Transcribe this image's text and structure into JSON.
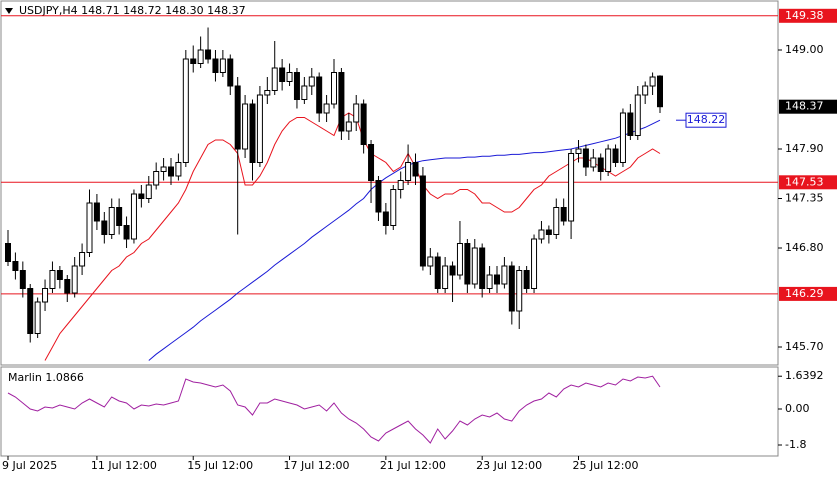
{
  "chart_data": {
    "type": "candlestick",
    "title": "USDJPY,H4  148.71 148.72 148.30 148.37",
    "categories": [
      "9 Jul 2025",
      null,
      null,
      null,
      null,
      null,
      null,
      null,
      null,
      null,
      null,
      null,
      "11 Jul 12:00",
      null,
      null,
      null,
      null,
      null,
      null,
      null,
      null,
      null,
      null,
      null,
      null,
      "15 Jul 12:00",
      null,
      null,
      null,
      null,
      null,
      null,
      null,
      null,
      null,
      null,
      null,
      null,
      "17 Jul 12:00",
      null,
      null,
      null,
      null,
      null,
      null,
      null,
      null,
      null,
      null,
      null,
      null,
      "21 Jul 12:00",
      null,
      null,
      null,
      null,
      null,
      null,
      null,
      null,
      null,
      null,
      null,
      null,
      "23 Jul 12:00",
      null,
      null,
      null,
      null,
      null,
      null,
      null,
      null,
      null,
      null,
      null,
      null,
      "25 Jul 12:00",
      null,
      null,
      null,
      null,
      null,
      null,
      null,
      null,
      null,
      null,
      null
    ],
    "open": [
      146.85,
      146.65,
      146.55,
      146.35,
      145.85,
      146.2,
      146.35,
      146.55,
      146.45,
      146.3,
      146.6,
      146.75,
      147.3,
      147.1,
      146.95,
      147.25,
      147.05,
      146.9,
      147.4,
      147.35,
      147.5,
      147.65,
      147.7,
      147.6,
      147.75,
      148.9,
      148.85,
      149.0,
      148.9,
      148.75,
      148.9,
      148.6,
      147.9,
      148.4,
      147.75,
      148.5,
      148.55,
      148.8,
      148.65,
      148.75,
      148.45,
      148.6,
      148.7,
      148.3,
      148.4,
      148.75,
      148.1,
      148.2,
      148.4,
      147.95,
      147.55,
      147.2,
      147.05,
      147.45,
      147.55,
      147.75,
      147.6,
      146.6,
      146.7,
      146.35,
      146.6,
      146.5,
      146.85,
      146.4,
      146.8,
      146.35,
      146.5,
      146.4,
      146.6,
      146.1,
      146.55,
      146.35,
      146.9,
      147.0,
      146.95,
      147.25,
      147.1,
      147.85,
      147.9,
      147.7,
      147.8,
      147.65,
      147.9,
      147.75,
      148.3,
      148.05,
      148.5,
      148.6,
      148.71
    ],
    "high": [
      147.0,
      146.75,
      146.65,
      146.4,
      146.25,
      146.45,
      146.65,
      146.6,
      146.5,
      146.7,
      146.85,
      147.45,
      147.4,
      147.2,
      147.35,
      147.35,
      147.15,
      147.45,
      147.5,
      147.6,
      147.75,
      147.8,
      147.8,
      147.85,
      149.0,
      149.05,
      149.15,
      149.25,
      149.0,
      149.0,
      148.95,
      148.7,
      148.5,
      148.45,
      148.6,
      148.7,
      149.1,
      148.9,
      148.85,
      148.8,
      148.7,
      148.8,
      148.75,
      148.5,
      148.9,
      148.8,
      148.3,
      148.5,
      148.45,
      148.0,
      147.6,
      147.3,
      147.5,
      147.65,
      147.95,
      147.85,
      147.7,
      146.8,
      146.75,
      146.7,
      146.65,
      147.1,
      146.9,
      146.9,
      146.85,
      146.6,
      146.6,
      146.7,
      146.65,
      146.6,
      146.6,
      146.95,
      147.1,
      147.05,
      147.35,
      147.35,
      147.9,
      148.0,
      147.95,
      147.9,
      147.85,
      147.95,
      147.95,
      148.35,
      148.4,
      148.6,
      148.65,
      148.75,
      148.72
    ],
    "low": [
      146.6,
      146.45,
      146.25,
      145.75,
      145.8,
      146.1,
      146.3,
      146.35,
      146.2,
      146.25,
      146.5,
      146.7,
      147.0,
      146.85,
      146.9,
      146.95,
      146.8,
      146.85,
      147.25,
      147.3,
      147.45,
      147.55,
      147.5,
      147.55,
      147.7,
      148.75,
      148.8,
      148.85,
      148.65,
      148.7,
      148.5,
      146.95,
      147.8,
      147.55,
      147.7,
      148.4,
      148.5,
      148.55,
      148.6,
      148.35,
      148.4,
      148.5,
      148.2,
      148.2,
      148.35,
      148.0,
      148.0,
      148.1,
      147.85,
      147.3,
      147.1,
      146.95,
      147.0,
      147.35,
      147.5,
      147.5,
      146.55,
      146.5,
      146.3,
      146.3,
      146.2,
      146.45,
      146.3,
      146.35,
      146.25,
      146.3,
      146.3,
      146.35,
      145.95,
      145.9,
      146.3,
      146.3,
      146.85,
      146.85,
      146.9,
      147.05,
      146.9,
      147.75,
      147.6,
      147.65,
      147.55,
      147.6,
      147.7,
      147.7,
      148.0,
      148.0,
      148.4,
      148.5,
      148.3
    ],
    "close": [
      146.65,
      146.55,
      146.35,
      145.85,
      146.2,
      146.35,
      146.55,
      146.45,
      146.3,
      146.6,
      146.75,
      147.3,
      147.1,
      146.95,
      147.25,
      147.05,
      146.9,
      147.4,
      147.35,
      147.5,
      147.65,
      147.7,
      147.6,
      147.75,
      148.9,
      148.85,
      149.0,
      148.9,
      148.75,
      148.9,
      148.6,
      147.9,
      148.4,
      147.75,
      148.5,
      148.55,
      148.8,
      148.65,
      148.75,
      148.45,
      148.6,
      148.7,
      148.3,
      148.4,
      148.75,
      148.1,
      148.2,
      148.4,
      147.95,
      147.55,
      147.2,
      147.05,
      147.45,
      147.55,
      147.75,
      147.6,
      146.6,
      146.7,
      146.35,
      146.6,
      146.5,
      146.85,
      146.4,
      146.8,
      146.35,
      146.5,
      146.4,
      146.6,
      146.1,
      146.55,
      146.35,
      146.9,
      147.0,
      146.95,
      147.25,
      147.1,
      147.85,
      147.9,
      147.7,
      147.8,
      147.65,
      147.9,
      147.75,
      148.3,
      148.05,
      148.5,
      148.6,
      148.7,
      148.37
    ],
    "series": [
      {
        "color": "#e8141e",
        "values": [
          null,
          null,
          null,
          null,
          null,
          145.55,
          145.7,
          145.85,
          145.95,
          146.05,
          146.15,
          146.25,
          146.35,
          146.45,
          146.55,
          146.6,
          146.7,
          146.75,
          146.85,
          146.9,
          147.0,
          147.1,
          147.2,
          147.3,
          147.45,
          147.65,
          147.8,
          147.95,
          148.0,
          148.0,
          147.95,
          147.85,
          147.5,
          147.5,
          147.6,
          147.75,
          147.95,
          148.1,
          148.2,
          148.25,
          148.25,
          148.2,
          148.15,
          148.1,
          148.05,
          148.25,
          148.3,
          148.25,
          148.0,
          147.85,
          147.8,
          147.75,
          147.65,
          147.7,
          147.85,
          147.7,
          147.5,
          147.4,
          147.35,
          147.4,
          147.4,
          147.45,
          147.45,
          147.4,
          147.3,
          147.3,
          147.25,
          147.2,
          147.2,
          147.25,
          147.35,
          147.45,
          147.5,
          147.6,
          147.65,
          147.7,
          147.75,
          147.8,
          147.8,
          147.75,
          147.7,
          147.65,
          147.6,
          147.65,
          147.7,
          147.8,
          147.85,
          147.9,
          147.85
        ]
      },
      {
        "color": "#1a1ad6",
        "values": [
          null,
          null,
          null,
          null,
          null,
          null,
          null,
          null,
          null,
          null,
          null,
          null,
          null,
          null,
          null,
          null,
          null,
          null,
          null,
          145.55,
          145.62,
          145.68,
          145.74,
          145.8,
          145.86,
          145.92,
          145.99,
          146.05,
          146.11,
          146.17,
          146.23,
          146.3,
          146.36,
          146.42,
          146.48,
          146.54,
          146.61,
          146.67,
          146.73,
          146.79,
          146.85,
          146.92,
          146.98,
          147.04,
          147.1,
          147.16,
          147.22,
          147.29,
          147.35,
          147.45,
          147.52,
          147.58,
          147.63,
          147.68,
          147.72,
          147.75,
          147.77,
          147.78,
          147.79,
          147.8,
          147.8,
          147.8,
          147.81,
          147.81,
          147.82,
          147.82,
          147.83,
          147.83,
          147.84,
          147.84,
          147.85,
          147.86,
          147.86,
          147.87,
          147.88,
          147.89,
          147.9,
          147.92,
          147.94,
          147.96,
          147.98,
          148.0,
          148.02,
          148.05,
          148.08,
          148.11,
          148.14,
          148.18,
          148.22
        ]
      }
    ],
    "levels": [
      149.38,
      147.53,
      146.29
    ],
    "level_color": "#e8141e",
    "ylim": [
      145.5,
      149.5
    ],
    "yticks": [
      {
        "value": 149.0,
        "label": "149.00"
      },
      {
        "value": 147.9,
        "label": "147.90"
      },
      {
        "value": 147.35,
        "label": "147.35"
      },
      {
        "value": 146.8,
        "label": "146.80"
      },
      {
        "value": 145.7,
        "label": "145.70"
      }
    ],
    "indicator": {
      "title": "Marlin 1.0866",
      "color": "#a020a0",
      "values": [
        0.8,
        0.6,
        0.3,
        0.0,
        -0.1,
        0.1,
        0.05,
        0.2,
        0.1,
        0.0,
        0.3,
        0.5,
        0.3,
        0.1,
        0.6,
        0.4,
        0.3,
        0.0,
        0.2,
        0.15,
        0.25,
        0.2,
        0.3,
        0.4,
        1.5,
        1.35,
        1.3,
        1.2,
        1.1,
        1.2,
        0.9,
        0.2,
        0.1,
        -0.3,
        0.3,
        0.3,
        0.5,
        0.4,
        0.3,
        0.2,
        0.0,
        0.1,
        0.2,
        -0.1,
        0.3,
        -0.2,
        -0.5,
        -0.7,
        -1.0,
        -1.4,
        -1.6,
        -1.2,
        -1.0,
        -0.8,
        -0.6,
        -1.0,
        -1.3,
        -1.7,
        -1.0,
        -1.5,
        -1.1,
        -0.6,
        -0.8,
        -0.5,
        -0.3,
        -0.4,
        -0.2,
        -0.5,
        -0.6,
        -0.1,
        0.2,
        0.4,
        0.5,
        0.8,
        0.6,
        1.0,
        1.2,
        1.1,
        1.3,
        1.2,
        1.1,
        1.3,
        1.2,
        1.5,
        1.4,
        1.6,
        1.55,
        1.64,
        1.1
      ],
      "ylim": [
        -2.3,
        2.05
      ],
      "yticks": [
        1.6392,
        {
          "value": 0,
          "label": "0.00"
        },
        -1.8
      ]
    }
  }
}
